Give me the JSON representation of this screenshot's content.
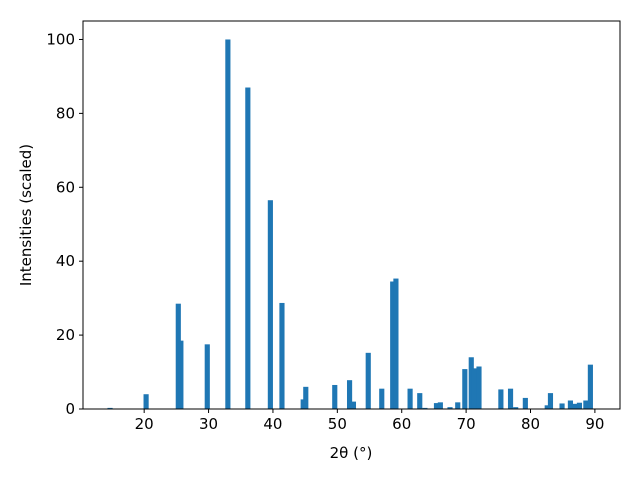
{
  "chart_data": {
    "type": "bar",
    "x_label": "2θ (°)",
    "y_label": "Intensities (scaled)",
    "color": "#1f77b4",
    "x": [
      14.7,
      20.3,
      25.3,
      25.7,
      29.8,
      33.0,
      36.1,
      39.6,
      41.4,
      44.7,
      45.1,
      49.6,
      51.9,
      52.5,
      54.8,
      56.9,
      58.6,
      59.1,
      61.3,
      62.8,
      63.6,
      65.4,
      66.0,
      67.5,
      68.7,
      69.8,
      70.8,
      71.3,
      72.0,
      75.4,
      76.9,
      77.7,
      79.2,
      82.6,
      83.1,
      84.9,
      86.2,
      87.0,
      87.6,
      88.6,
      89.3
    ],
    "values": [
      0.3,
      4,
      28.5,
      18.5,
      17.5,
      100,
      87,
      56.5,
      28.7,
      2.6,
      6,
      6.5,
      7.8,
      2,
      15.2,
      5.5,
      34.5,
      35.3,
      5.5,
      4.3,
      0.3,
      1.6,
      1.8,
      0.5,
      1.8,
      10.8,
      14,
      11,
      11.5,
      5.3,
      5.5,
      0.5,
      3,
      1,
      4.3,
      1.5,
      2.3,
      1.4,
      1.7,
      2.3,
      12
    ],
    "xlim": [
      10.5,
      93.9
    ],
    "ylim": [
      0,
      105
    ],
    "xticks": [
      20,
      30,
      40,
      50,
      60,
      70,
      80,
      90
    ],
    "yticks": [
      0,
      20,
      40,
      60,
      80,
      100
    ]
  }
}
